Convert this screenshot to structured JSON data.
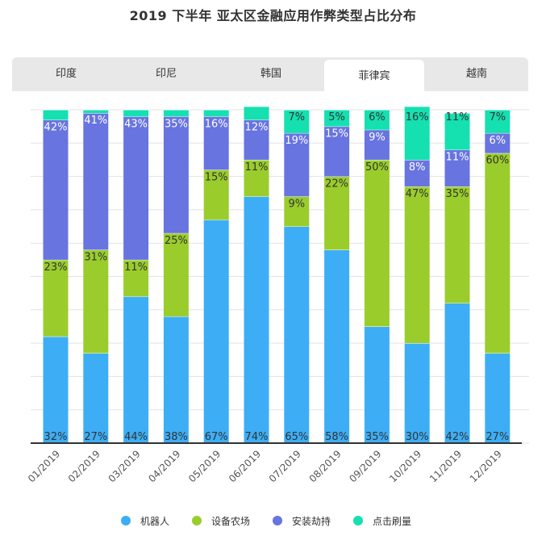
{
  "title": "2019 下半年 亚太区金融应用作弊类型占比分布",
  "tabs": [
    {
      "label": "印度",
      "active": false
    },
    {
      "label": "印尼",
      "active": false
    },
    {
      "label": "韩国",
      "active": false
    },
    {
      "label": "菲律宾",
      "active": true
    },
    {
      "label": "越南",
      "active": false
    }
  ],
  "chart_data": {
    "type": "bar",
    "stacked": true,
    "title": "2019 下半年 亚太区金融应用作弊类型占比分布",
    "categories": [
      "01/2019",
      "02/2019",
      "03/2019",
      "04/2019",
      "05/2019",
      "06/2019",
      "07/2019",
      "08/2019",
      "09/2019",
      "10/2019",
      "11/2019",
      "12/2019"
    ],
    "ylim": [
      0,
      100
    ],
    "grid": true,
    "legend_position": "bottom",
    "series": [
      {
        "name": "机器人",
        "color": "#3daef5",
        "values": [
          32,
          27,
          44,
          38,
          67,
          74,
          65,
          58,
          35,
          30,
          42,
          27
        ]
      },
      {
        "name": "设备农场",
        "color": "#9acd2c",
        "values": [
          23,
          31,
          11,
          25,
          15,
          11,
          9,
          22,
          50,
          47,
          35,
          60
        ]
      },
      {
        "name": "安装劫持",
        "color": "#6874e0",
        "values": [
          42,
          41,
          43,
          35,
          16,
          12,
          19,
          15,
          9,
          8,
          11,
          6
        ]
      },
      {
        "name": "点击刷量",
        "color": "#15e0b0",
        "values": [
          3,
          1,
          2,
          2,
          2,
          4,
          7,
          5,
          6,
          16,
          11,
          7
        ]
      }
    ],
    "labels": [
      [
        "32%",
        "27%",
        "44%",
        "38%",
        "67%",
        "74%",
        "65%",
        "58%",
        "35%",
        "30%",
        "42%",
        "27%"
      ],
      [
        "23%",
        "31%",
        "11%",
        "25%",
        "15%",
        "11%",
        "9%",
        "22%",
        "50%",
        "47%",
        "35%",
        "60%"
      ],
      [
        "42%",
        "41%",
        "43%",
        "35%",
        "16%",
        "12%",
        "19%",
        "15%",
        "9%",
        "8%",
        "11%",
        "6%"
      ],
      [
        "",
        "",
        "",
        "",
        "",
        "",
        "7%",
        "5%",
        "6%",
        "16%",
        "11%",
        "7%"
      ]
    ]
  }
}
